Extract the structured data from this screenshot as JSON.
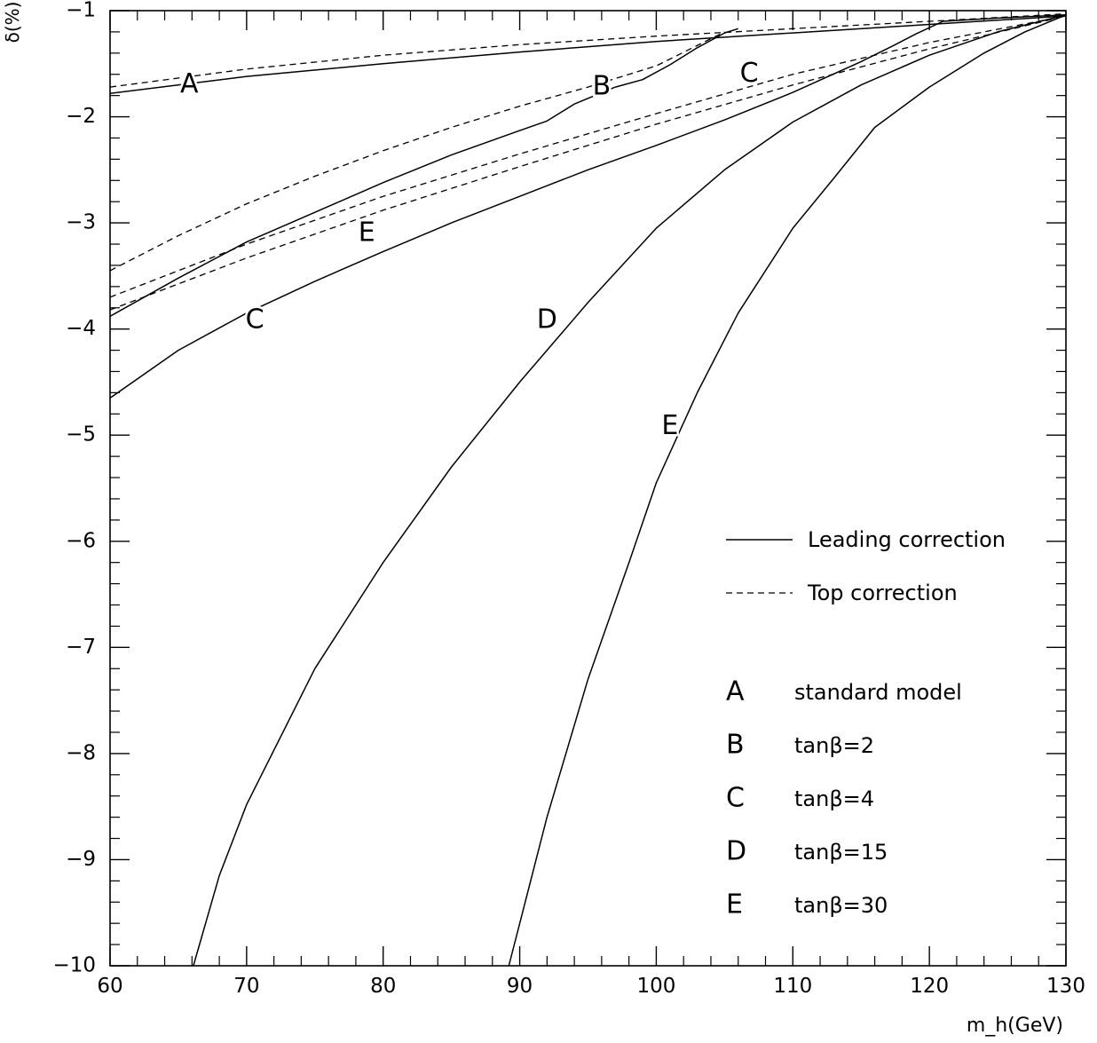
{
  "chart_data": {
    "type": "line",
    "xlabel": "m_h(GeV)",
    "ylabel": "δ(%)",
    "xlim": [
      60,
      130
    ],
    "ylim": [
      -10,
      -1
    ],
    "xticks": [
      60,
      70,
      80,
      90,
      100,
      110,
      120,
      130
    ],
    "yticks": [
      -1,
      -2,
      -3,
      -4,
      -5,
      -6,
      -7,
      -8,
      -9,
      -10
    ],
    "grid": false,
    "legend_position": "bottom-right",
    "legend_lines": [
      {
        "style": "solid",
        "label": "Leading correction"
      },
      {
        "style": "dashed",
        "label": "Top correction"
      }
    ],
    "legend_keys": [
      {
        "key": "A",
        "label": "standard model"
      },
      {
        "key": "B",
        "label": "tanβ=2"
      },
      {
        "key": "C",
        "label": "tanβ=4"
      },
      {
        "key": "D",
        "label": "tanβ=15"
      },
      {
        "key": "E",
        "label": "tanβ=30"
      }
    ],
    "series": [
      {
        "curve": "A",
        "style": "solid",
        "label_at": [
          65.8,
          -1.7
        ],
        "x": [
          60,
          70,
          80,
          90,
          100,
          105,
          110,
          120,
          130
        ],
        "y": [
          -1.78,
          -1.62,
          -1.5,
          -1.39,
          -1.29,
          -1.25,
          -1.21,
          -1.13,
          -1.05
        ]
      },
      {
        "curve": "A",
        "style": "dashed",
        "x": [
          60,
          70,
          80,
          90,
          100,
          110,
          120,
          130
        ],
        "y": [
          -1.72,
          -1.55,
          -1.42,
          -1.32,
          -1.24,
          -1.17,
          -1.1,
          -1.03
        ]
      },
      {
        "curve": "B",
        "style": "solid",
        "label_at": [
          96,
          -1.72
        ],
        "x": [
          60,
          65,
          70,
          75,
          80,
          85,
          90,
          92,
          94,
          97,
          99,
          101,
          103,
          104,
          105,
          106
        ],
        "y": [
          -3.88,
          -3.52,
          -3.18,
          -2.9,
          -2.62,
          -2.36,
          -2.13,
          -2.04,
          -1.88,
          -1.72,
          -1.65,
          -1.51,
          -1.35,
          -1.28,
          -1.21,
          -1.17
        ]
      },
      {
        "curve": "B",
        "style": "dashed",
        "x": [
          60,
          65,
          70,
          75,
          80,
          85,
          90,
          95,
          100,
          105
        ],
        "y": [
          -3.45,
          -3.12,
          -2.82,
          -2.56,
          -2.32,
          -2.1,
          -1.9,
          -1.72,
          -1.52,
          -1.2
        ]
      },
      {
        "curve": "C",
        "style": "solid",
        "label_at": [
          70.6,
          -3.92
        ],
        "x": [
          60,
          65,
          70,
          75,
          80,
          85,
          90,
          95,
          100,
          105,
          110,
          115,
          117.5,
          119,
          121,
          125,
          130
        ],
        "y": [
          -4.65,
          -4.2,
          -3.85,
          -3.55,
          -3.27,
          -3.0,
          -2.75,
          -2.5,
          -2.27,
          -2.03,
          -1.77,
          -1.48,
          -1.32,
          -1.22,
          -1.1,
          -1.07,
          -1.04
        ]
      },
      {
        "curve": "C",
        "style": "dashed",
        "label_at": [
          106.8,
          -1.6
        ],
        "x": [
          60,
          70,
          80,
          90,
          100,
          110,
          120,
          130
        ],
        "y": [
          -3.7,
          -3.2,
          -2.75,
          -2.35,
          -1.97,
          -1.6,
          -1.3,
          -1.05
        ]
      },
      {
        "curve": "D",
        "style": "solid",
        "label_at": [
          92,
          -3.92
        ],
        "x": [
          66.1,
          68,
          70,
          75,
          80,
          85,
          90,
          95,
          100,
          105,
          110,
          115,
          120,
          125,
          130
        ],
        "y": [
          -10.0,
          -9.15,
          -8.48,
          -7.2,
          -6.2,
          -5.3,
          -4.5,
          -3.75,
          -3.05,
          -2.5,
          -2.05,
          -1.7,
          -1.42,
          -1.2,
          -1.04
        ]
      },
      {
        "curve": "E",
        "style": "dashed",
        "label_at": [
          78.8,
          -3.1
        ],
        "x": [
          60,
          70,
          80,
          90,
          100,
          110,
          120,
          130
        ],
        "y": [
          -3.82,
          -3.33,
          -2.88,
          -2.47,
          -2.07,
          -1.7,
          -1.36,
          -1.05
        ]
      },
      {
        "curve": "E",
        "style": "solid",
        "label_at": [
          101,
          -4.92
        ],
        "x": [
          89.2,
          90,
          92,
          95,
          98,
          100,
          103,
          106,
          110,
          113,
          116,
          120,
          124,
          127,
          130
        ],
        "y": [
          -10.0,
          -9.6,
          -8.6,
          -7.3,
          -6.2,
          -5.45,
          -4.6,
          -3.85,
          -3.05,
          -2.58,
          -2.1,
          -1.72,
          -1.4,
          -1.2,
          -1.04
        ]
      }
    ]
  }
}
